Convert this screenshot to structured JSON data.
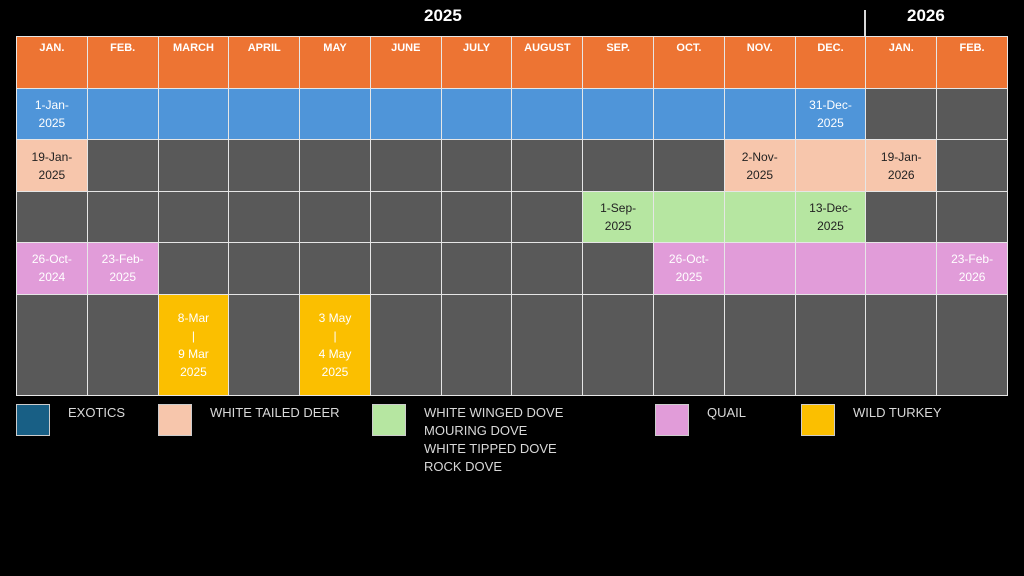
{
  "years": {
    "y2025": "2025",
    "y2026": "2026"
  },
  "months": [
    "JAN.",
    "FEB.",
    "MARCH",
    "APRIL",
    "MAY",
    "JUNE",
    "JULY",
    "AUGUST",
    "SEP.",
    "OCT.",
    "NOV.",
    "DEC.",
    "JAN.",
    "FEB."
  ],
  "rows": {
    "exotics": {
      "start": "1-Jan-2025",
      "end": "31-Dec-2025"
    },
    "deer": {
      "start": "19-Jan-2025",
      "mid": "2-Nov-2025",
      "end": "19-Jan-2026"
    },
    "dove": {
      "start": "1-Sep-2025",
      "end": "13-Dec-2025"
    },
    "quail": {
      "start1": "26-Oct-2024",
      "end1": "23-Feb-2025",
      "start2": "26-Oct-2025",
      "end2": "23-Feb-2026"
    },
    "turkey": {
      "period1_start": "8-Mar",
      "period1_sep": "|",
      "period1_end": "9 Mar",
      "period1_year": "2025",
      "period2_start": "3 May",
      "period2_sep": "|",
      "period2_end": "4 May",
      "period2_year": "2025"
    }
  },
  "colors": {
    "header": "#ed7433",
    "empty": "#595959",
    "exotics": "#4f95d9",
    "exotics_legend": "#185f85",
    "deer": "#f7c6ac",
    "dove": "#b6e6a1",
    "quail": "#e19cd9",
    "turkey": "#fbbf00"
  },
  "legend": {
    "exotics": "EXOTICS",
    "deer": "WHITE TAILED DEER",
    "dove": [
      "WHITE WINGED DOVE",
      "MOURING DOVE",
      "WHITE TIPPED DOVE",
      "ROCK DOVE"
    ],
    "quail": "QUAIL",
    "turkey": "WILD TURKEY"
  }
}
